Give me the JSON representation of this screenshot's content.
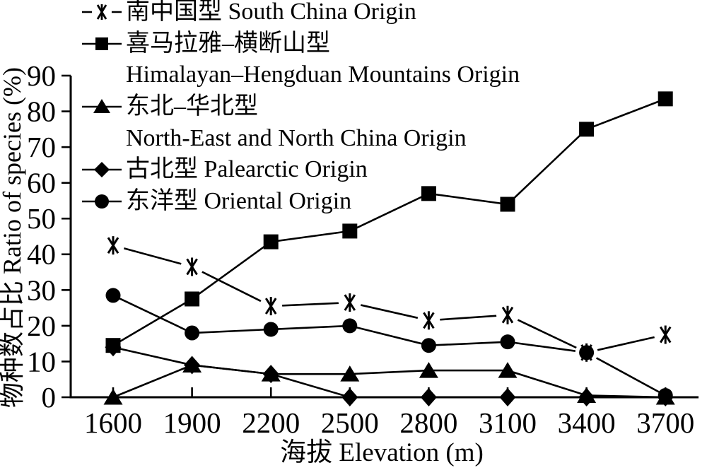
{
  "figure": {
    "type": "scientific-line-chart",
    "background": "#ffffff"
  },
  "colors": {
    "foreground": "#000000",
    "background": "#ffffff"
  },
  "axes": {
    "xlabel": "海拔 Elevation (m)",
    "ylabel": "物种数占比 Ratio of species (%)",
    "x_tick_labels": [
      "1600",
      "1900",
      "2200",
      "2500",
      "2800",
      "3100",
      "3400",
      "3700"
    ],
    "y_tick_labels": [
      "0",
      "10",
      "20",
      "30",
      "40",
      "50",
      "60",
      "70",
      "80",
      "90"
    ]
  },
  "legend_rows": [
    {
      "marker": "asterisk",
      "text": "南中国型 South China Origin"
    },
    {
      "marker": "square",
      "text": "喜马拉雅–横断山型"
    },
    {
      "marker": "none",
      "text": "Himalayan–Hengduan Mountains Origin"
    },
    {
      "marker": "triangle",
      "text": "东北–华北型"
    },
    {
      "marker": "none",
      "text": "North-East and North China Origin"
    },
    {
      "marker": "diamond",
      "text": "古北型 Palearctic Origin"
    },
    {
      "marker": "circle",
      "text": "东洋型 Oriental Origin"
    }
  ],
  "chart_data": {
    "type": "line",
    "x": [
      1600,
      1900,
      2200,
      2500,
      2800,
      3100,
      3400,
      3700
    ],
    "series": [
      {
        "name": "南中国型 South China Origin",
        "marker": "asterisk",
        "values": [
          42.5,
          36.5,
          25.5,
          26.5,
          21.5,
          23,
          12.5,
          17.5
        ]
      },
      {
        "name": "喜马拉雅–横断山型 Himalayan–Hengduan Mountains Origin",
        "marker": "square",
        "values": [
          14.5,
          27.5,
          43.5,
          46.5,
          57,
          54,
          75,
          83.5
        ]
      },
      {
        "name": "东北–华北型 North-East and North China Origin",
        "marker": "triangle",
        "values": [
          0,
          9,
          6.5,
          6.5,
          7.5,
          7.5,
          0.5,
          0
        ]
      },
      {
        "name": "古北型 Palearctic Origin",
        "marker": "diamond",
        "values": [
          14,
          9,
          6.5,
          0,
          0,
          0,
          0,
          0
        ]
      },
      {
        "name": "东洋型 Oriental Origin",
        "marker": "circle",
        "values": [
          28.5,
          18,
          19,
          20,
          14.5,
          15.5,
          12.5,
          0.5
        ]
      }
    ],
    "title": "",
    "xlabel": "海拔 Elevation (m)",
    "ylabel": "物种数占比 Ratio of species (%)",
    "xlim": [
      1600,
      3700
    ],
    "ylim": [
      0,
      90
    ],
    "ytick_step": 10,
    "grid": false,
    "line_color": "#000000",
    "legend_position": "top-left"
  }
}
